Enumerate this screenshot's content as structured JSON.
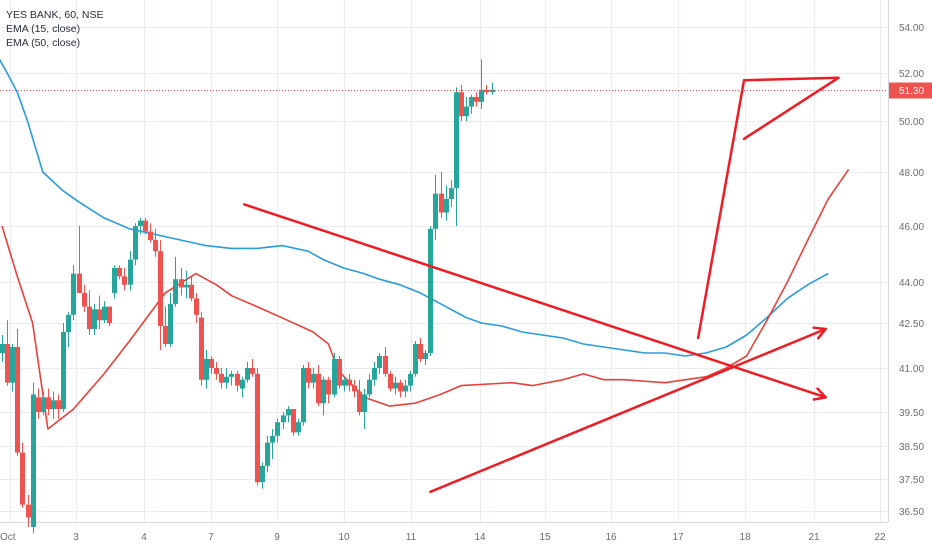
{
  "legend": {
    "symbol": "YES BANK, 60, NSE",
    "ema_fast": "EMA (15, close)",
    "ema_slow": "EMA (50, close)"
  },
  "colors": {
    "up": "#26a69a",
    "down": "#ef5350",
    "ema_fast": "#e8413c",
    "ema_slow": "#2a9bdc",
    "trendline": "#ee1c25",
    "grid": "#e9ecf1",
    "price_tag": "#ef5350"
  },
  "chart_data": {
    "type": "candlestick",
    "y_ticks": [
      "54.00",
      "52.00",
      "50.00",
      "48.00",
      "46.00",
      "44.00",
      "42.50",
      "41.00",
      "39.50",
      "38.50",
      "37.50",
      "36.50"
    ],
    "x_ticks": [
      "Oct",
      "3",
      "4",
      "7",
      "9",
      "10",
      "11",
      "14",
      "15",
      "16",
      "17",
      "18",
      "21",
      "22"
    ],
    "last_price": "51.30",
    "candles": [
      [
        41.5,
        42.1,
        41.2,
        41.8
      ],
      [
        41.8,
        42.6,
        40.4,
        40.5
      ],
      [
        40.5,
        41.8,
        40.2,
        41.7
      ],
      [
        41.7,
        42.3,
        38.2,
        38.3
      ],
      [
        38.3,
        38.6,
        36.6,
        36.7
      ],
      [
        36.7,
        37.0,
        36.0,
        36.3
      ],
      [
        36.0,
        40.5,
        35.8,
        40.1
      ],
      [
        40.0,
        40.3,
        39.3,
        39.5
      ],
      [
        39.5,
        40.2,
        39.4,
        40.0
      ],
      [
        40.0,
        40.3,
        39.4,
        39.6
      ],
      [
        39.6,
        40.2,
        39.3,
        39.9
      ],
      [
        39.9,
        40.1,
        39.3,
        39.6
      ],
      [
        39.6,
        42.5,
        39.5,
        42.2
      ],
      [
        42.2,
        42.9,
        41.7,
        42.8
      ],
      [
        42.8,
        44.6,
        42.6,
        44.3
      ],
      [
        44.3,
        46.0,
        43.6,
        43.6
      ],
      [
        43.6,
        43.9,
        42.9,
        43.1
      ],
      [
        43.1,
        43.7,
        42.1,
        42.3
      ],
      [
        42.3,
        43.2,
        42.1,
        43.0
      ],
      [
        43.0,
        43.5,
        42.3,
        42.6
      ],
      [
        42.6,
        43.3,
        42.5,
        43.1
      ],
      [
        43.1,
        43.1,
        42.4,
        42.5
      ],
      [
        43.6,
        44.6,
        43.4,
        44.5
      ],
      [
        44.5,
        44.6,
        44.1,
        44.2
      ],
      [
        44.2,
        44.5,
        43.7,
        43.9
      ],
      [
        43.9,
        45.1,
        43.7,
        44.8
      ],
      [
        44.8,
        46.1,
        44.6,
        46.0
      ],
      [
        46.0,
        46.3,
        45.7,
        46.2
      ],
      [
        46.2,
        46.3,
        45.7,
        45.8
      ],
      [
        45.8,
        46.1,
        45.4,
        45.5
      ],
      [
        45.5,
        45.9,
        44.9,
        45.1
      ],
      [
        45.1,
        45.5,
        41.6,
        42.4
      ],
      [
        42.4,
        43.1,
        41.7,
        41.8
      ],
      [
        41.8,
        43.6,
        41.7,
        43.2
      ],
      [
        43.2,
        44.9,
        43.1,
        44.1
      ],
      [
        44.1,
        44.5,
        43.5,
        43.8
      ],
      [
        43.8,
        44.4,
        43.4,
        43.9
      ],
      [
        43.9,
        44.2,
        43.3,
        43.4
      ],
      [
        43.4,
        43.6,
        42.5,
        42.8
      ],
      [
        42.7,
        42.9,
        40.4,
        40.6
      ],
      [
        40.6,
        41.6,
        40.3,
        41.3
      ],
      [
        41.3,
        41.4,
        40.8,
        41.0
      ],
      [
        41.0,
        41.2,
        40.6,
        40.8
      ],
      [
        40.8,
        41.0,
        40.3,
        40.5
      ],
      [
        40.5,
        41.0,
        40.3,
        40.7
      ],
      [
        40.7,
        40.9,
        40.4,
        40.8
      ],
      [
        40.8,
        40.9,
        40.2,
        40.4
      ],
      [
        40.3,
        40.7,
        40.0,
        40.6
      ],
      [
        40.6,
        41.2,
        40.5,
        41.0
      ],
      [
        41.0,
        41.3,
        40.7,
        40.8
      ],
      [
        40.8,
        41.0,
        37.3,
        37.4
      ],
      [
        37.4,
        38.0,
        37.2,
        37.9
      ],
      [
        37.9,
        38.8,
        37.7,
        38.6
      ],
      [
        38.6,
        39.0,
        38.1,
        38.8
      ],
      [
        38.8,
        39.3,
        38.6,
        39.2
      ],
      [
        39.2,
        39.5,
        39.0,
        39.4
      ],
      [
        39.4,
        39.7,
        39.2,
        39.6
      ],
      [
        39.6,
        39.6,
        38.8,
        38.9
      ],
      [
        38.9,
        39.3,
        38.8,
        39.2
      ],
      [
        39.2,
        41.1,
        39.1,
        41.0
      ],
      [
        41.0,
        41.2,
        40.3,
        40.5
      ],
      [
        40.5,
        41.0,
        40.3,
        40.8
      ],
      [
        40.8,
        41.1,
        39.7,
        39.8
      ],
      [
        39.8,
        40.7,
        39.4,
        40.6
      ],
      [
        40.6,
        40.7,
        39.8,
        40.1
      ],
      [
        40.1,
        41.5,
        40.0,
        41.3
      ],
      [
        41.3,
        41.4,
        40.3,
        40.4
      ],
      [
        40.4,
        40.7,
        40.2,
        40.6
      ],
      [
        40.6,
        40.8,
        40.2,
        40.4
      ],
      [
        40.4,
        40.6,
        40.0,
        40.2
      ],
      [
        40.2,
        40.6,
        39.4,
        39.5
      ],
      [
        39.5,
        40.3,
        39.0,
        40.1
      ],
      [
        40.1,
        40.8,
        40.0,
        40.6
      ],
      [
        40.6,
        41.2,
        40.4,
        41.0
      ],
      [
        41.0,
        41.5,
        40.8,
        41.4
      ],
      [
        41.4,
        41.7,
        40.7,
        40.8
      ],
      [
        40.8,
        40.9,
        40.2,
        40.3
      ],
      [
        40.3,
        40.7,
        40.1,
        40.5
      ],
      [
        40.5,
        40.6,
        40.0,
        40.2
      ],
      [
        40.2,
        40.6,
        40.0,
        40.4
      ],
      [
        40.4,
        40.9,
        40.2,
        40.8
      ],
      [
        40.8,
        41.9,
        40.7,
        41.8
      ],
      [
        41.8,
        42.0,
        41.2,
        41.3
      ],
      [
        41.3,
        41.6,
        41.1,
        41.5
      ],
      [
        41.5,
        46.0,
        41.4,
        45.9
      ],
      [
        45.9,
        47.9,
        45.5,
        47.2
      ],
      [
        47.2,
        48.0,
        46.3,
        46.5
      ],
      [
        46.5,
        47.5,
        46.2,
        47.0
      ],
      [
        47.0,
        47.7,
        46.7,
        47.4
      ],
      [
        47.4,
        51.4,
        46.0,
        51.2
      ],
      [
        51.2,
        51.5,
        50.0,
        50.2
      ],
      [
        50.2,
        51.0,
        50.0,
        50.6
      ],
      [
        50.6,
        51.1,
        50.3,
        51.0
      ],
      [
        51.0,
        51.2,
        50.6,
        50.8
      ],
      [
        50.8,
        52.6,
        50.5,
        51.3
      ],
      [
        51.3,
        51.5,
        51.1,
        51.2
      ],
      [
        51.2,
        51.6,
        51.1,
        51.3
      ]
    ],
    "ema15": [
      [
        0,
        46.0
      ],
      [
        3,
        44.2
      ],
      [
        6,
        42.5
      ],
      [
        9,
        39.0
      ],
      [
        14,
        39.6
      ],
      [
        20,
        40.8
      ],
      [
        25,
        41.9
      ],
      [
        32,
        43.6
      ],
      [
        38,
        44.3
      ],
      [
        42,
        43.9
      ],
      [
        45,
        43.5
      ],
      [
        50,
        43.1
      ],
      [
        56,
        42.6
      ],
      [
        61,
        42.2
      ],
      [
        64,
        41.8
      ],
      [
        66,
        40.9
      ],
      [
        71,
        40.0
      ],
      [
        76,
        39.7
      ],
      [
        81,
        39.8
      ],
      [
        86,
        40.1
      ],
      [
        90,
        40.4
      ],
      [
        100,
        40.5
      ],
      [
        104,
        40.4
      ],
      [
        110,
        40.6
      ],
      [
        114,
        40.8
      ],
      [
        118,
        40.6
      ],
      [
        122,
        40.6
      ],
      [
        130,
        40.5
      ],
      [
        134,
        40.6
      ],
      [
        138,
        40.7
      ],
      [
        142,
        41.0
      ],
      [
        146,
        41.4
      ],
      [
        150,
        42.6
      ],
      [
        154,
        44.0
      ],
      [
        158,
        45.5
      ],
      [
        162,
        47.0
      ],
      [
        166,
        48.1
      ]
    ],
    "ema50": [
      [
        -1,
        52.8
      ],
      [
        1,
        52.0
      ],
      [
        3,
        51.2
      ],
      [
        5,
        50.0
      ],
      [
        8,
        48.0
      ],
      [
        12,
        47.3
      ],
      [
        15,
        46.9
      ],
      [
        20,
        46.3
      ],
      [
        25,
        45.9
      ],
      [
        30,
        45.7
      ],
      [
        35,
        45.5
      ],
      [
        40,
        45.3
      ],
      [
        45,
        45.2
      ],
      [
        50,
        45.2
      ],
      [
        55,
        45.3
      ],
      [
        60,
        45.1
      ],
      [
        63,
        44.8
      ],
      [
        67,
        44.5
      ],
      [
        71,
        44.3
      ],
      [
        74,
        44.1
      ],
      [
        78,
        43.9
      ],
      [
        82,
        43.6
      ],
      [
        85,
        43.3
      ],
      [
        88,
        43.0
      ],
      [
        91,
        42.7
      ],
      [
        94,
        42.5
      ],
      [
        98,
        42.4
      ],
      [
        102,
        42.2
      ],
      [
        106,
        42.1
      ],
      [
        110,
        42.0
      ],
      [
        114,
        41.8
      ],
      [
        118,
        41.7
      ],
      [
        122,
        41.6
      ],
      [
        126,
        41.5
      ],
      [
        130,
        41.5
      ],
      [
        134,
        41.4
      ],
      [
        138,
        41.5
      ],
      [
        142,
        41.7
      ],
      [
        146,
        42.1
      ],
      [
        150,
        42.7
      ],
      [
        154,
        43.4
      ],
      [
        158,
        43.9
      ],
      [
        162,
        44.3
      ]
    ],
    "trendlines": [
      {
        "from": [
          47.5,
          46.8
        ],
        "to": [
          161.5,
          40.0
        ],
        "arrow": true
      },
      {
        "from": [
          84,
          37.1
        ],
        "to": [
          161.5,
          42.3
        ],
        "arrow": true
      },
      {
        "from": [
          136.5,
          42.0
        ],
        "to": [
          145.5,
          51.7
        ]
      },
      {
        "from": [
          145.5,
          51.7
        ],
        "to": [
          164,
          51.8
        ]
      },
      {
        "from": [
          145.5,
          49.3
        ],
        "to": [
          164,
          51.8
        ]
      }
    ]
  }
}
